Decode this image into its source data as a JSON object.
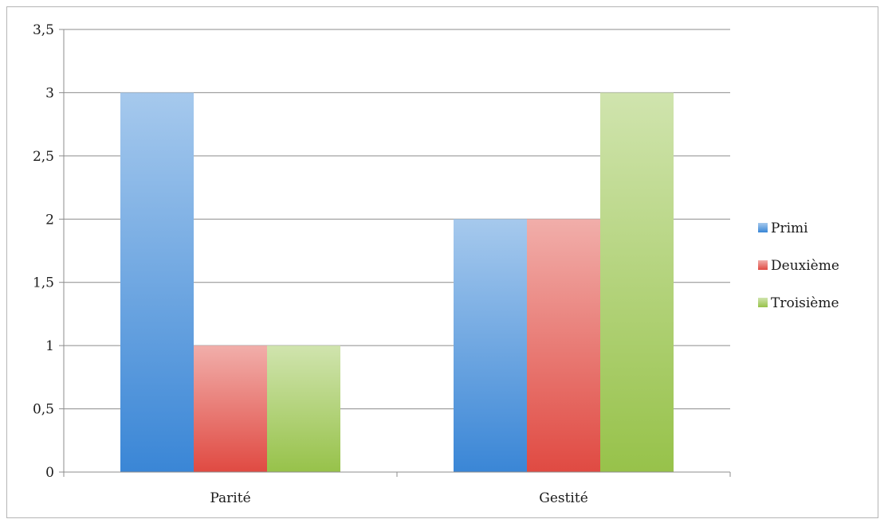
{
  "chart_data": {
    "type": "bar",
    "title": "",
    "xlabel": "",
    "ylabel": "",
    "categories": [
      "Parité",
      "Gestité"
    ],
    "series": [
      {
        "name": "Primi",
        "values": [
          3,
          2
        ],
        "color": "#3a86d6"
      },
      {
        "name": "Deuxième",
        "values": [
          1,
          2
        ],
        "color": "#e04a42"
      },
      {
        "name": "Troisième",
        "values": [
          1,
          3
        ],
        "color": "#97c24a"
      }
    ],
    "ylim": [
      0,
      3.5
    ],
    "yticks": [
      "0",
      "0,5",
      "1",
      "1,5",
      "2",
      "2,5",
      "3",
      "3,5"
    ],
    "grid": true,
    "legend_position": "right"
  }
}
